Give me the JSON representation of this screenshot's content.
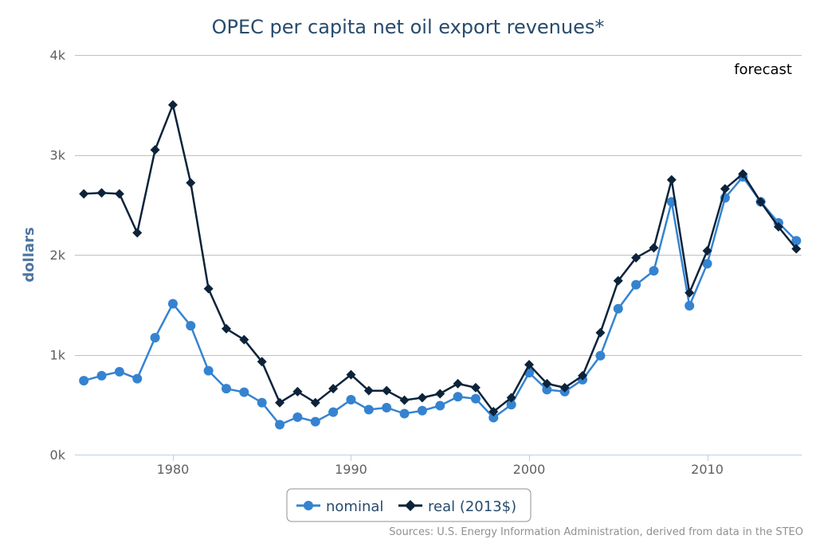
{
  "chart_data": {
    "type": "line",
    "title": "OPEC per capita net oil export revenues*",
    "ylabel": "dollars",
    "xlabel": "",
    "xlim": [
      1974.5,
      2015.3
    ],
    "ylim": [
      0,
      4000
    ],
    "x_ticks": [
      1980,
      1990,
      2000,
      2010
    ],
    "x_tick_labels": [
      "1980",
      "1990",
      "2000",
      "2010"
    ],
    "y_ticks": [
      0,
      1000,
      2000,
      3000,
      4000
    ],
    "y_tick_labels": [
      "0k",
      "1k",
      "2k",
      "3k",
      "4k"
    ],
    "grid": "horizontal",
    "legend": "bottom-center",
    "annotation": "forecast",
    "source": "Sources: U.S. Energy Information Administration, derived from data in the STEO",
    "x": [
      1975,
      1976,
      1977,
      1978,
      1979,
      1980,
      1981,
      1982,
      1983,
      1984,
      1985,
      1986,
      1987,
      1988,
      1989,
      1990,
      1991,
      1992,
      1993,
      1994,
      1995,
      1996,
      1997,
      1998,
      1999,
      2000,
      2001,
      2002,
      2003,
      2004,
      2005,
      2006,
      2007,
      2008,
      2009,
      2010,
      2011,
      2012,
      2013,
      2014,
      2015
    ],
    "series": [
      {
        "name": "nominal",
        "color": "#3583d0",
        "marker": "circle",
        "values": [
          740,
          790,
          830,
          760,
          1170,
          1510,
          1290,
          840,
          660,
          625,
          520,
          300,
          375,
          330,
          425,
          550,
          450,
          470,
          410,
          440,
          490,
          580,
          560,
          370,
          500,
          820,
          650,
          630,
          750,
          990,
          1460,
          1700,
          1840,
          2530,
          1490,
          1910,
          2570,
          2780,
          2530,
          2320,
          2140
        ]
      },
      {
        "name": "real (2013$)",
        "color": "#0d233a",
        "marker": "diamond",
        "values": [
          2610,
          2620,
          2610,
          2220,
          3050,
          3500,
          2720,
          1660,
          1260,
          1150,
          930,
          520,
          630,
          520,
          660,
          800,
          640,
          640,
          545,
          570,
          610,
          710,
          670,
          430,
          570,
          900,
          710,
          670,
          790,
          1220,
          1740,
          1970,
          2070,
          2750,
          1620,
          2040,
          2660,
          2810,
          2530,
          2280,
          2060
        ]
      }
    ]
  }
}
